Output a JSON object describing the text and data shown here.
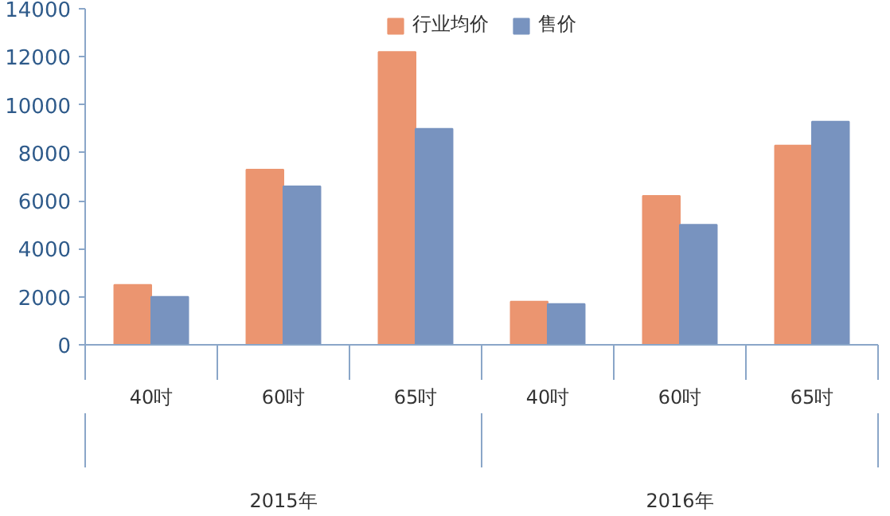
{
  "chart_data": {
    "type": "bar",
    "categories": [
      "40吋",
      "60吋",
      "65吋",
      "40吋",
      "60吋",
      "65吋"
    ],
    "series": [
      {
        "name": "行业均价",
        "color": "#eb9570",
        "values": [
          2500,
          7300,
          12200,
          1800,
          6200,
          8300
        ]
      },
      {
        "name": "售价",
        "color": "#7893bf",
        "values": [
          2000,
          6600,
          9000,
          1700,
          5000,
          9300
        ]
      }
    ],
    "ylim": [
      0,
      14000
    ],
    "yticks": [
      0,
      2000,
      4000,
      6000,
      8000,
      10000,
      12000,
      14000
    ],
    "annotations": [
      "2015年",
      "2016年"
    ],
    "grid": false,
    "legend": "top"
  }
}
